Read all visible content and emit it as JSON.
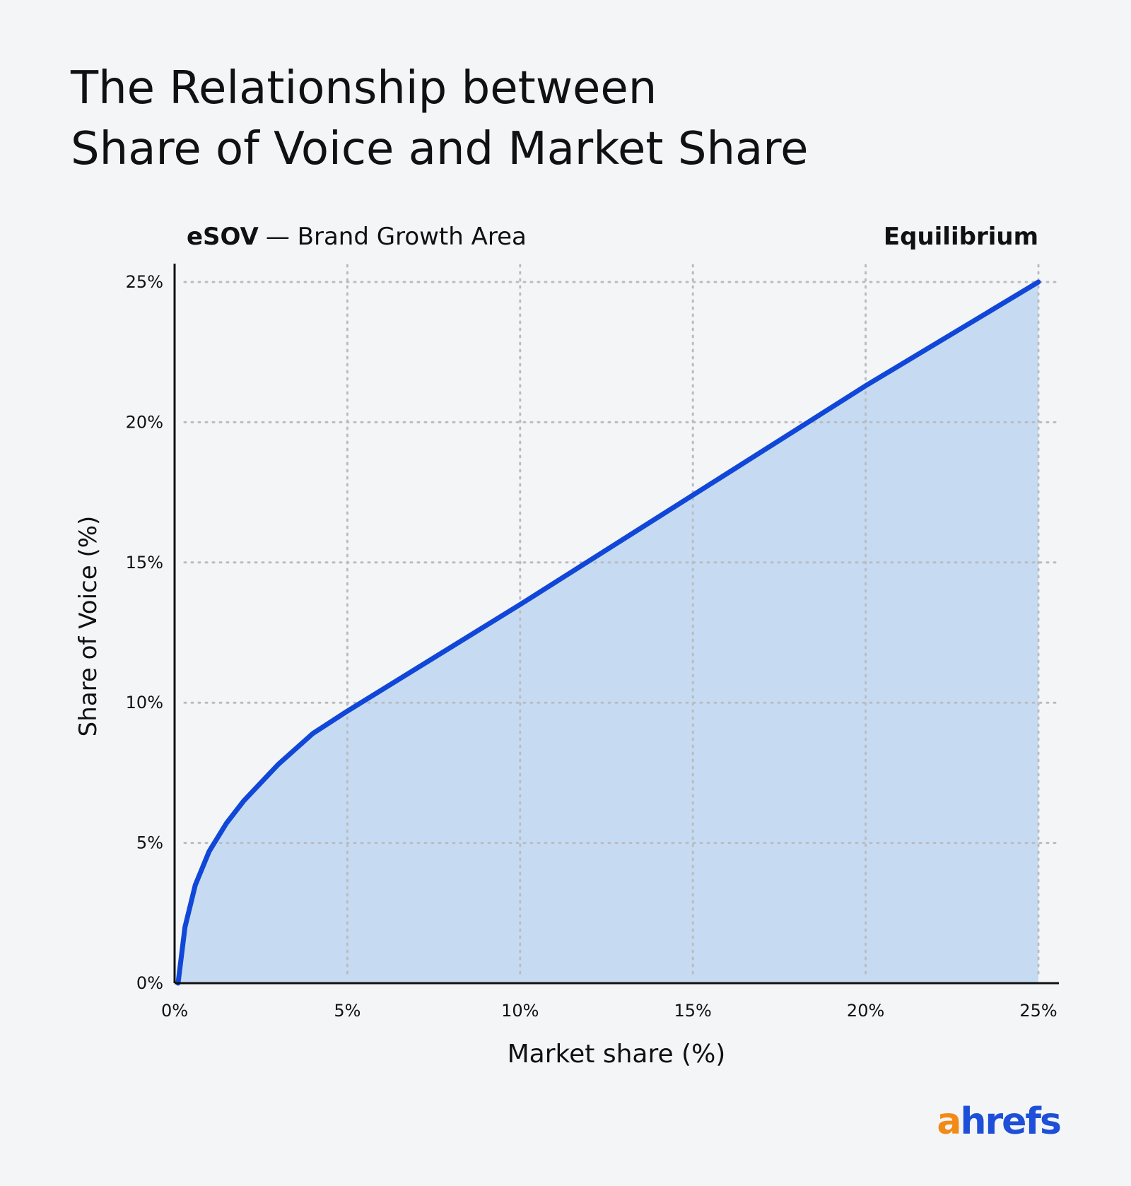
{
  "chart_data": {
    "type": "area",
    "title_lines": [
      "The Relationship between",
      "Share of Voice and Market Share"
    ],
    "annotation_bold": "eSOV",
    "annotation": "— Brand Growth Area",
    "line_label": "Equilibrium",
    "xlabel": "Market share (%)",
    "ylabel": "Share of Voice (%)",
    "x": [
      0.1,
      0.3,
      0.6,
      1,
      1.5,
      2,
      3,
      4,
      5,
      10,
      15,
      20,
      25
    ],
    "series": [
      {
        "color": "#1147d8",
        "fill": "#c6dbf1",
        "values": [
          0,
          2,
          3.5,
          4.7,
          5.7,
          6.5,
          7.8,
          8.9,
          9.7,
          13.5,
          17.4,
          21.3,
          25
        ]
      }
    ],
    "xlim": [
      0,
      25
    ],
    "ylim": [
      0,
      25
    ],
    "xticks": [
      {
        "value": 0,
        "label": "0%"
      },
      {
        "value": 5,
        "label": "5%"
      },
      {
        "value": 10,
        "label": "10%"
      },
      {
        "value": 15,
        "label": "15%"
      },
      {
        "value": 20,
        "label": "20%"
      },
      {
        "value": 25,
        "label": "25%"
      }
    ],
    "yticks": [
      {
        "value": 0,
        "label": "0%"
      },
      {
        "value": 5,
        "label": "5%"
      },
      {
        "value": 10,
        "label": "10%"
      },
      {
        "value": 15,
        "label": "15%"
      },
      {
        "value": 20,
        "label": "20%"
      },
      {
        "value": 25,
        "label": "25%"
      }
    ],
    "grid": true,
    "logo": [
      "a",
      "hrefs"
    ]
  }
}
